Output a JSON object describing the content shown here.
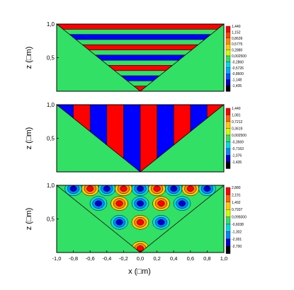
{
  "colors": {
    "plot_background": "#33e066",
    "frame": "#000000",
    "contour_line": "#000000"
  },
  "chart_data": [
    {
      "type": "heatmap",
      "panel": "top",
      "mode": "horizontal-bands",
      "domain": "inverted-triangle",
      "x": [
        -1.0,
        1.0
      ],
      "y": [
        0.0,
        1.0
      ],
      "ylabel": "z (□m)",
      "ytick_labels": [
        "1,0",
        "0,5"
      ],
      "colorbar": {
        "labels": [
          "1,440",
          "1,152",
          "0,8639",
          "0,5775",
          "0,2880",
          "0,002500",
          "-0,2860",
          "-0,5726",
          "-0,8600",
          "-1,148",
          "-1,435"
        ],
        "colors": [
          "#ff0000",
          "#ff4400",
          "#ff8800",
          "#ffcc00",
          "#ccff00",
          "#33e066",
          "#00dddd",
          "#00aaff",
          "#0055ff",
          "#0000cc",
          "#000000"
        ]
      },
      "band_colors": [
        "#ff0000",
        "#33e066",
        "#0000ff",
        "#33e066",
        "#ff0000",
        "#33e066",
        "#0000ff",
        "#33e066",
        "#ff0000",
        "#33e066",
        "#0000ff",
        "#33e066",
        "#ff0000"
      ]
    },
    {
      "type": "heatmap",
      "panel": "middle",
      "mode": "vertical-bands",
      "domain": "inverted-triangle",
      "x": [
        -1.0,
        1.0
      ],
      "y": [
        0.0,
        1.0
      ],
      "ylabel": "z (□m)",
      "ytick_labels": [
        "1,0",
        "0,5"
      ],
      "colorbar": {
        "labels": [
          "1,440",
          "1,081",
          "0,7212",
          "0,3619",
          "0,002500",
          "-0,3569",
          "-0,7163",
          "-1,076",
          "-1,435"
        ],
        "colors": [
          "#ff0000",
          "#ff6600",
          "#ffcc00",
          "#ccff00",
          "#33e066",
          "#00dddd",
          "#0088ff",
          "#0000cc",
          "#000000"
        ]
      },
      "band_colors": [
        "#0000ff",
        "#ff0000",
        "#0000ff",
        "#ff0000",
        "#0000ff",
        "#ff0000",
        "#0000ff",
        "#ff0000",
        "#0000ff",
        "#ff0000"
      ]
    },
    {
      "type": "heatmap",
      "panel": "bottom",
      "mode": "checkerboard",
      "domain": "inverted-triangle",
      "x": [
        -1.0,
        1.0
      ],
      "y": [
        0.0,
        1.0
      ],
      "xlabel": "x (□m)",
      "ylabel": "z (□m)",
      "xtick_labels": [
        "-1,0",
        "-0,8",
        "-0,6",
        "-0,4",
        "-0,2",
        "0,0",
        "0,2",
        "0,4",
        "0,6",
        "0,8",
        "1,0"
      ],
      "ytick_labels": [
        "1,0",
        "0,5"
      ],
      "colorbar": {
        "labels": [
          "2,880",
          "2,191",
          "1,492",
          "0,7937",
          "0,095000",
          "-0,6038",
          "-1,302",
          "-2,001",
          "-2,700"
        ],
        "colors": [
          "#ff0000",
          "#ff6600",
          "#ffcc00",
          "#ccff00",
          "#33e066",
          "#00dddd",
          "#0088ff",
          "#0000cc",
          "#000000"
        ]
      },
      "spots": [
        {
          "x": -0.8,
          "z": 0.95,
          "sign": -1
        },
        {
          "x": -0.6,
          "z": 0.95,
          "sign": 1
        },
        {
          "x": -0.4,
          "z": 0.95,
          "sign": -1
        },
        {
          "x": -0.2,
          "z": 0.95,
          "sign": 1
        },
        {
          "x": 0.0,
          "z": 0.95,
          "sign": -1
        },
        {
          "x": 0.2,
          "z": 0.95,
          "sign": 1
        },
        {
          "x": 0.4,
          "z": 0.95,
          "sign": -1
        },
        {
          "x": 0.6,
          "z": 0.95,
          "sign": 1
        },
        {
          "x": 0.8,
          "z": 0.95,
          "sign": -1
        },
        {
          "x": -0.5,
          "z": 0.73,
          "sign": -1
        },
        {
          "x": -0.25,
          "z": 0.73,
          "sign": 1
        },
        {
          "x": 0.0,
          "z": 0.73,
          "sign": -1
        },
        {
          "x": 0.25,
          "z": 0.73,
          "sign": 1
        },
        {
          "x": 0.5,
          "z": 0.73,
          "sign": -1
        },
        {
          "x": -0.25,
          "z": 0.45,
          "sign": -1
        },
        {
          "x": 0.0,
          "z": 0.45,
          "sign": 1
        },
        {
          "x": 0.25,
          "z": 0.45,
          "sign": -1
        },
        {
          "x": 0.0,
          "z": 0.06,
          "sign": 1
        }
      ]
    }
  ]
}
